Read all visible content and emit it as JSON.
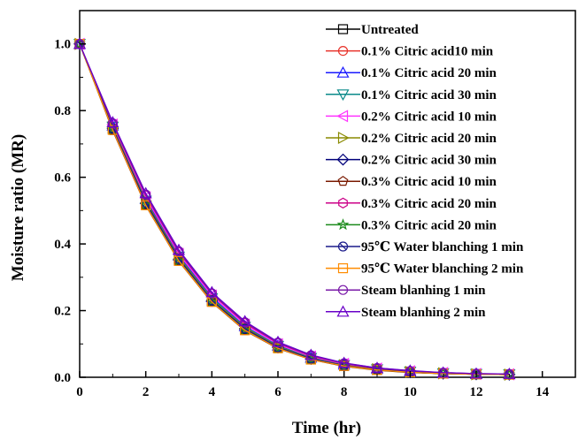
{
  "chart_data": {
    "type": "line",
    "xlabel": "Time (hr)",
    "ylabel": "Moisture ratio (MR)",
    "xlim": [
      0,
      15
    ],
    "ylim": [
      0,
      1.1
    ],
    "xticks": [
      0,
      2,
      4,
      6,
      8,
      10,
      12,
      14
    ],
    "yticks": [
      0.0,
      0.2,
      0.4,
      0.6,
      0.8,
      1.0
    ],
    "xtick_labels": [
      "0",
      "2",
      "4",
      "6",
      "8",
      "10",
      "12",
      "14"
    ],
    "ytick_labels": [
      "0.0",
      "0.2",
      "0.4",
      "0.6",
      "0.8",
      "1.0"
    ],
    "grid": false,
    "legend_position": "top-right",
    "x": [
      0,
      1,
      2,
      3,
      4,
      5,
      6,
      7,
      8,
      9,
      10,
      11,
      12,
      13
    ],
    "series": [
      {
        "name": "Untreated",
        "color": "#000000",
        "marker": "square",
        "values": [
          1.0,
          0.745,
          0.52,
          0.352,
          0.228,
          0.143,
          0.088,
          0.054,
          0.034,
          0.022,
          0.015,
          0.011,
          0.009,
          0.008
        ]
      },
      {
        "name": "0.1% Citric acid10 min",
        "color": "#e8332b",
        "marker": "circle",
        "values": [
          1.0,
          0.748,
          0.525,
          0.357,
          0.232,
          0.147,
          0.091,
          0.056,
          0.036,
          0.023,
          0.016,
          0.012,
          0.009,
          0.008
        ]
      },
      {
        "name": "0.1% Citric acid 20 min",
        "color": "#1a1aff",
        "marker": "triangle-up",
        "values": [
          1.0,
          0.755,
          0.535,
          0.365,
          0.24,
          0.153,
          0.095,
          0.059,
          0.038,
          0.025,
          0.017,
          0.012,
          0.01,
          0.009
        ]
      },
      {
        "name": "0.1% Citric acid 30 min",
        "color": "#0a8a8a",
        "marker": "triangle-down",
        "values": [
          1.0,
          0.752,
          0.53,
          0.362,
          0.237,
          0.151,
          0.094,
          0.058,
          0.037,
          0.024,
          0.017,
          0.012,
          0.01,
          0.009
        ]
      },
      {
        "name": "0.2% Citric acid 10 min",
        "color": "#ff33ff",
        "marker": "triangle-left",
        "values": [
          1.0,
          0.758,
          0.54,
          0.37,
          0.245,
          0.158,
          0.099,
          0.062,
          0.04,
          0.026,
          0.018,
          0.013,
          0.01,
          0.009
        ]
      },
      {
        "name": "0.2% Citric acid 20 min",
        "color": "#8a8a00",
        "marker": "triangle-right",
        "values": [
          1.0,
          0.75,
          0.528,
          0.36,
          0.234,
          0.149,
          0.092,
          0.057,
          0.036,
          0.024,
          0.016,
          0.012,
          0.009,
          0.008
        ]
      },
      {
        "name": "0.2% Citric acid 30 min",
        "color": "#00007a",
        "marker": "diamond",
        "values": [
          1.0,
          0.746,
          0.522,
          0.354,
          0.229,
          0.145,
          0.089,
          0.055,
          0.035,
          0.023,
          0.015,
          0.011,
          0.009,
          0.008
        ]
      },
      {
        "name": "0.3% Citric acid 10 min",
        "color": "#7a1a00",
        "marker": "pentagon",
        "values": [
          1.0,
          0.74,
          0.515,
          0.348,
          0.225,
          0.14,
          0.086,
          0.053,
          0.033,
          0.021,
          0.014,
          0.011,
          0.009,
          0.008
        ]
      },
      {
        "name": "0.3% Citric acid 20 min",
        "color": "#cc0088",
        "marker": "hexagon",
        "values": [
          1.0,
          0.76,
          0.545,
          0.375,
          0.25,
          0.162,
          0.102,
          0.064,
          0.041,
          0.027,
          0.019,
          0.013,
          0.011,
          0.009
        ]
      },
      {
        "name": "0.3% Citric acid 20 min",
        "color": "#1a8a1a",
        "marker": "star",
        "values": [
          1.0,
          0.744,
          0.518,
          0.35,
          0.227,
          0.142,
          0.087,
          0.054,
          0.034,
          0.022,
          0.015,
          0.011,
          0.009,
          0.008
        ]
      },
      {
        "name": "95℃  Water blanching 1 min",
        "color": "#1a1a8a",
        "marker": "circle-cross",
        "values": [
          1.0,
          0.747,
          0.524,
          0.356,
          0.231,
          0.146,
          0.09,
          0.056,
          0.035,
          0.023,
          0.016,
          0.011,
          0.009,
          0.008
        ]
      },
      {
        "name": "95℃  Water blanching 2 min",
        "color": "#ff8c00",
        "marker": "square",
        "values": [
          1.0,
          0.742,
          0.516,
          0.349,
          0.226,
          0.141,
          0.087,
          0.053,
          0.034,
          0.022,
          0.015,
          0.011,
          0.009,
          0.008
        ]
      },
      {
        "name": "Steam blanhing 1 min",
        "color": "#7a1aa8",
        "marker": "circle",
        "values": [
          1.0,
          0.762,
          0.548,
          0.378,
          0.252,
          0.165,
          0.104,
          0.066,
          0.042,
          0.028,
          0.019,
          0.014,
          0.011,
          0.01
        ]
      },
      {
        "name": "Steam blanhing 2 min",
        "color": "#6a00c8",
        "marker": "triangle-up",
        "values": [
          1.0,
          0.765,
          0.552,
          0.382,
          0.255,
          0.168,
          0.106,
          0.067,
          0.043,
          0.028,
          0.02,
          0.014,
          0.011,
          0.01
        ]
      }
    ]
  }
}
